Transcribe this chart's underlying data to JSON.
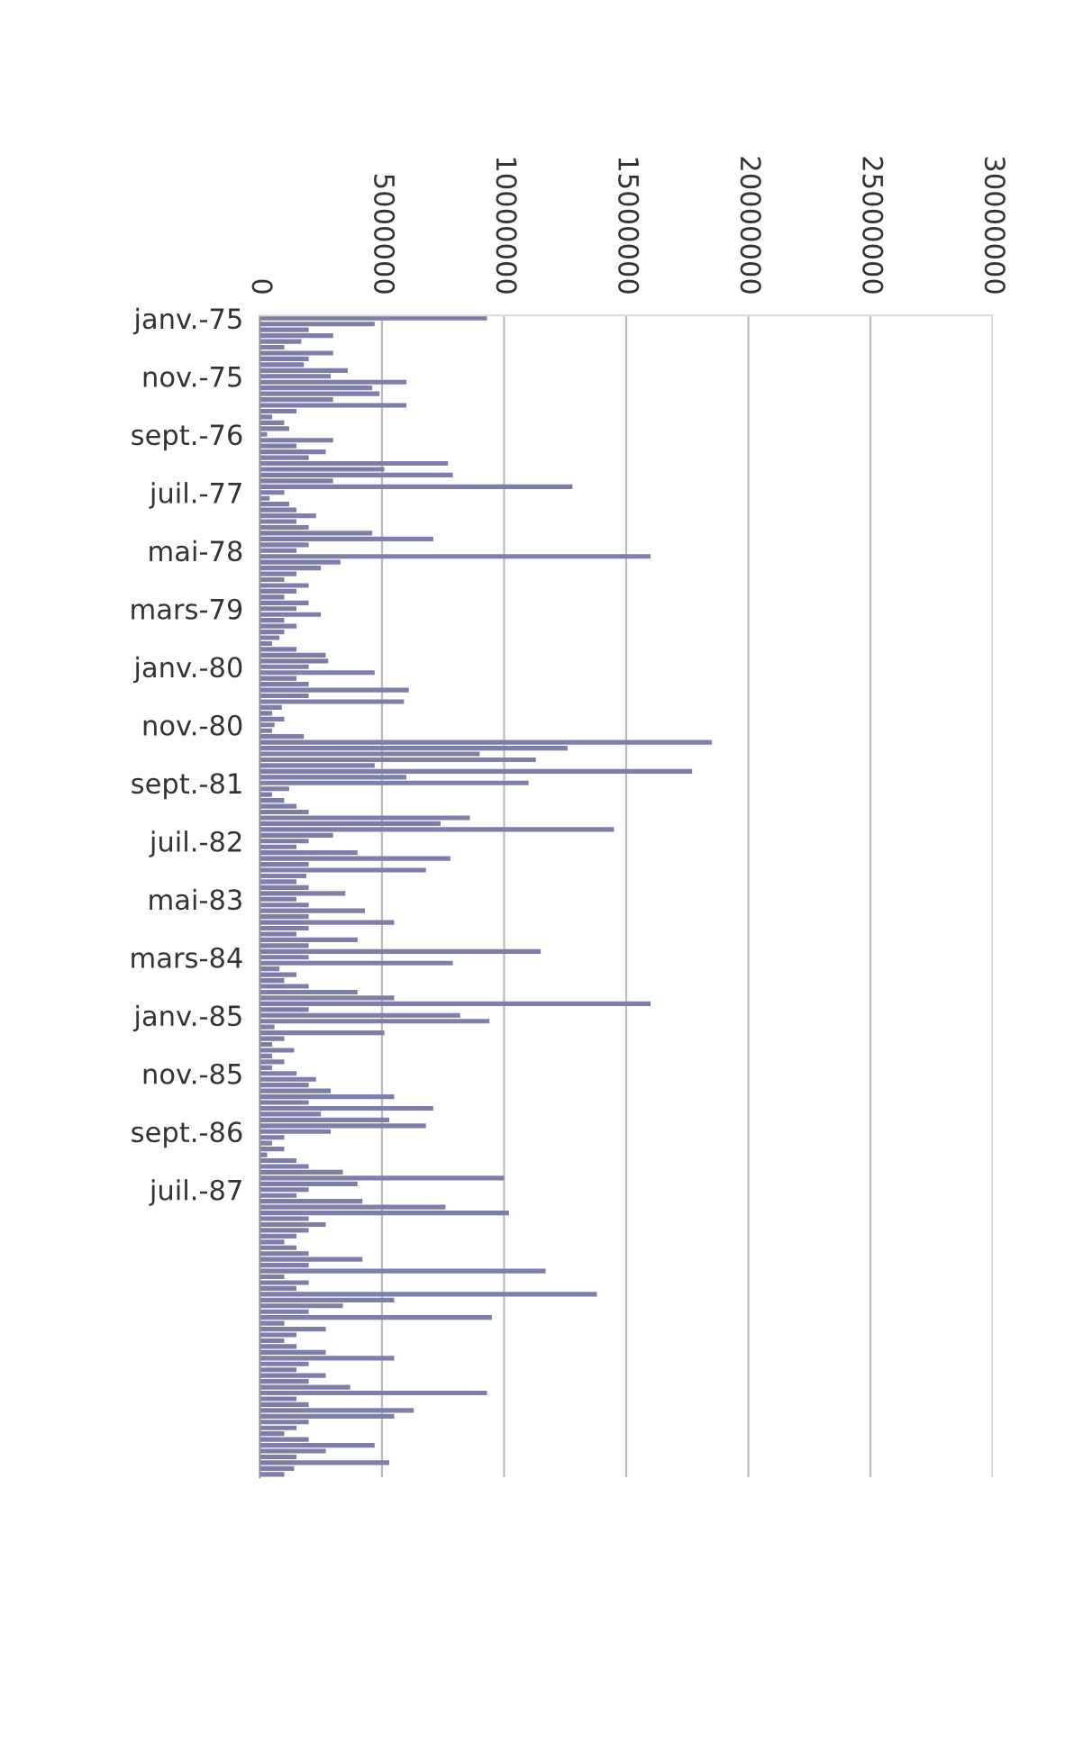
{
  "chart_data": {
    "type": "bar",
    "orientation": "horizontal",
    "color": "#7e7eaa",
    "grid": "x",
    "legend": false,
    "categories": [
      "janv.-75",
      null,
      null,
      null,
      null,
      null,
      null,
      null,
      null,
      null,
      "nov.-75",
      null,
      null,
      null,
      null,
      null,
      null,
      null,
      null,
      null,
      "sept.-76",
      null,
      null,
      null,
      null,
      null,
      null,
      null,
      null,
      null,
      "juil.-77",
      null,
      null,
      null,
      null,
      null,
      null,
      null,
      null,
      null,
      "mai-78",
      null,
      null,
      null,
      null,
      null,
      null,
      null,
      null,
      null,
      "mars-79",
      null,
      null,
      null,
      null,
      null,
      null,
      null,
      null,
      null,
      "janv.-80",
      null,
      null,
      null,
      null,
      null,
      null,
      null,
      null,
      null,
      "nov.-80",
      null,
      null,
      null,
      null,
      null,
      null,
      null,
      null,
      null,
      "sept.-81",
      null,
      null,
      null,
      null,
      null,
      null,
      null,
      null,
      null,
      "juil.-82",
      null,
      null,
      null,
      null,
      null,
      null,
      null,
      null,
      null,
      "mai-83",
      null,
      null,
      null,
      null,
      null,
      null,
      null,
      null,
      null,
      "mars-84",
      null,
      null,
      null,
      null,
      null,
      null,
      null,
      null,
      null,
      "janv.-85",
      null,
      null,
      null,
      null,
      null,
      null,
      null,
      null,
      null,
      "nov.-85",
      null,
      null,
      null,
      null,
      null,
      null,
      null,
      null,
      null,
      "sept.-86",
      null,
      null,
      null,
      null,
      null,
      null,
      null,
      null,
      null,
      "juil.-87",
      null,
      null,
      null,
      null,
      null,
      null,
      null,
      null,
      null,
      null,
      null,
      null,
      null,
      null,
      null,
      null,
      null,
      null,
      null,
      null,
      null,
      null,
      null,
      null,
      null,
      null,
      null,
      null,
      null,
      null,
      null,
      null,
      null,
      null,
      null,
      null,
      null,
      null,
      null,
      null,
      null,
      null,
      null,
      null,
      null,
      null,
      null,
      null,
      null
    ],
    "values": [
      9300000,
      4700000,
      2000000,
      3000000,
      1700000,
      1000000,
      3000000,
      2000000,
      1800000,
      3600000,
      2900000,
      6000000,
      4600000,
      4900000,
      3000000,
      6000000,
      1500000,
      500000,
      1000000,
      1200000,
      300000,
      3000000,
      1500000,
      2700000,
      2000000,
      7700000,
      5100000,
      7900000,
      3000000,
      12800000,
      1000000,
      400000,
      1200000,
      1500000,
      2300000,
      1500000,
      2000000,
      4600000,
      7100000,
      2000000,
      1500000,
      16000000,
      3300000,
      2500000,
      1500000,
      1000000,
      2000000,
      1500000,
      1000000,
      2000000,
      1500000,
      2500000,
      1000000,
      1500000,
      1000000,
      800000,
      500000,
      1500000,
      2700000,
      2800000,
      2000000,
      4700000,
      1500000,
      2000000,
      6100000,
      2000000,
      5900000,
      900000,
      500000,
      1000000,
      600000,
      500000,
      1800000,
      18500000,
      12600000,
      9000000,
      11300000,
      4700000,
      17700000,
      6000000,
      11000000,
      1200000,
      500000,
      1000000,
      1500000,
      2000000,
      8600000,
      7400000,
      14500000,
      3000000,
      2000000,
      1500000,
      4000000,
      7800000,
      2000000,
      6800000,
      1900000,
      1500000,
      2000000,
      3500000,
      1500000,
      2000000,
      4300000,
      2000000,
      5500000,
      2000000,
      1500000,
      4000000,
      2000000,
      11500000,
      2000000,
      7900000,
      800000,
      1500000,
      1000000,
      2000000,
      4000000,
      5500000,
      16000000,
      2000000,
      8200000,
      9400000,
      600000,
      5100000,
      1000000,
      500000,
      1400000,
      500000,
      1000000,
      500000,
      1500000,
      2300000,
      2000000,
      2900000,
      5500000,
      2000000,
      7100000,
      2500000,
      5300000,
      6800000,
      2900000,
      1000000,
      500000,
      1000000,
      300000,
      1500000,
      2000000,
      3400000,
      10000000,
      4000000,
      2000000,
      1500000,
      4200000,
      7600000,
      10200000,
      2000000,
      2700000,
      2000000,
      1500000,
      1000000,
      1500000,
      2000000,
      4200000,
      2000000,
      11700000,
      1000000,
      2000000,
      1500000,
      13800000,
      5500000,
      3400000,
      2000000,
      9500000,
      1000000,
      2700000,
      1500000,
      1000000,
      1500000,
      2700000,
      5500000,
      2000000,
      1500000,
      2700000,
      2000000,
      3700000,
      9300000,
      1500000,
      2000000,
      6300000,
      5500000,
      2000000,
      1500000,
      1000000,
      2000000,
      4700000,
      2700000,
      1500000,
      5300000,
      1400000,
      1000000
    ],
    "xlim": [
      0,
      30000000
    ],
    "xticks": [
      0,
      5000000,
      10000000,
      15000000,
      20000000,
      25000000,
      30000000
    ]
  }
}
